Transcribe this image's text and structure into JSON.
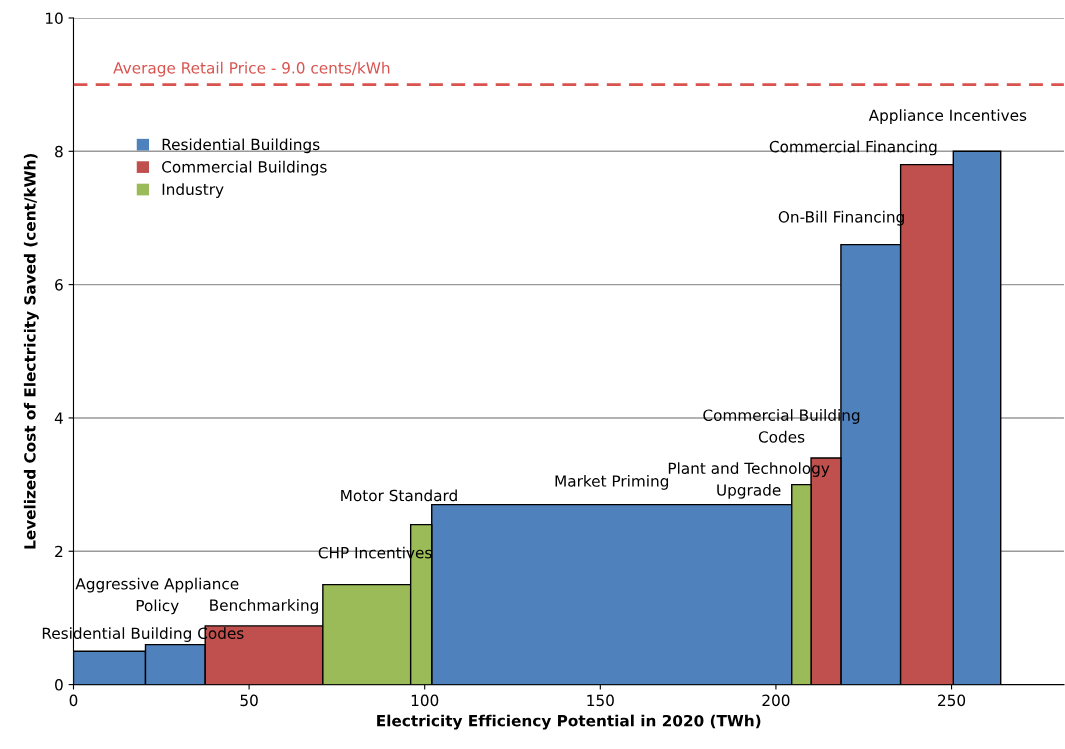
{
  "chart_data": {
    "type": "histogram",
    "xlabel": "Electricity Efficiency Potential in 2020 (TWh)",
    "ylabel": "Levelized Cost of Electricity Saved (cent/kWh)",
    "bins": [
      0,
      20.5,
      37.5,
      71,
      96,
      102,
      204.5,
      210,
      218.5,
      235.5,
      250.5,
      264
    ],
    "series": [
      {
        "name": "Residential Buildings",
        "color": "#4f81bd",
        "values": [
          0.5,
          0.6,
          null,
          null,
          null,
          2.7,
          null,
          null,
          6.6,
          null,
          8.0
        ]
      },
      {
        "name": "Commercial Buildings",
        "color": "#c0504d",
        "values": [
          null,
          null,
          0.88,
          null,
          null,
          null,
          null,
          3.4,
          null,
          7.8,
          null
        ]
      },
      {
        "name": "Industry",
        "color": "#9bbb59",
        "values": [
          null,
          null,
          null,
          1.5,
          2.4,
          null,
          3.0,
          null,
          null,
          null,
          null
        ]
      }
    ],
    "xlim": [
      0,
      282
    ],
    "xticks": [
      0,
      50,
      100,
      150,
      200,
      250
    ],
    "ylim": [
      0,
      10
    ],
    "yticks": [
      0,
      2,
      4,
      6,
      8,
      10
    ],
    "grid": "y",
    "legend": "top left",
    "ref_lines": [
      {
        "axis": "y",
        "value": 9.0,
        "label": "Average Retail Price - 9.0 cents/kWh",
        "color": "#d9534f",
        "line_style": "dashed"
      }
    ],
    "annotations": [
      {
        "text": "Residential Building Codes",
        "x": 10.25,
        "y": 0.5
      },
      {
        "text": "Aggressive Appliance\nPolicy",
        "x": 29,
        "y": 0.6
      },
      {
        "text": "Benchmarking",
        "x": 54.25,
        "y": 0.88
      },
      {
        "text": "CHP Incentives",
        "x": 83.5,
        "y": 1.5
      },
      {
        "text": "Motor Standard",
        "x": 99,
        "y": 2.4
      },
      {
        "text": "Market Priming",
        "x": 153.25,
        "y": 2.7
      },
      {
        "text": "Plant and Technology\nUpgrade",
        "x": 207.25,
        "y": 3.0
      },
      {
        "text": "Commercial Building\nCodes",
        "x": 214.25,
        "y": 3.4
      },
      {
        "text": "On-Bill Financing",
        "x": 227,
        "y": 6.6
      },
      {
        "text": "Commercial Financing",
        "x": 243,
        "y": 7.8
      },
      {
        "text": "Appliance Incentives",
        "x": 257.25,
        "y": 8.0
      }
    ]
  }
}
